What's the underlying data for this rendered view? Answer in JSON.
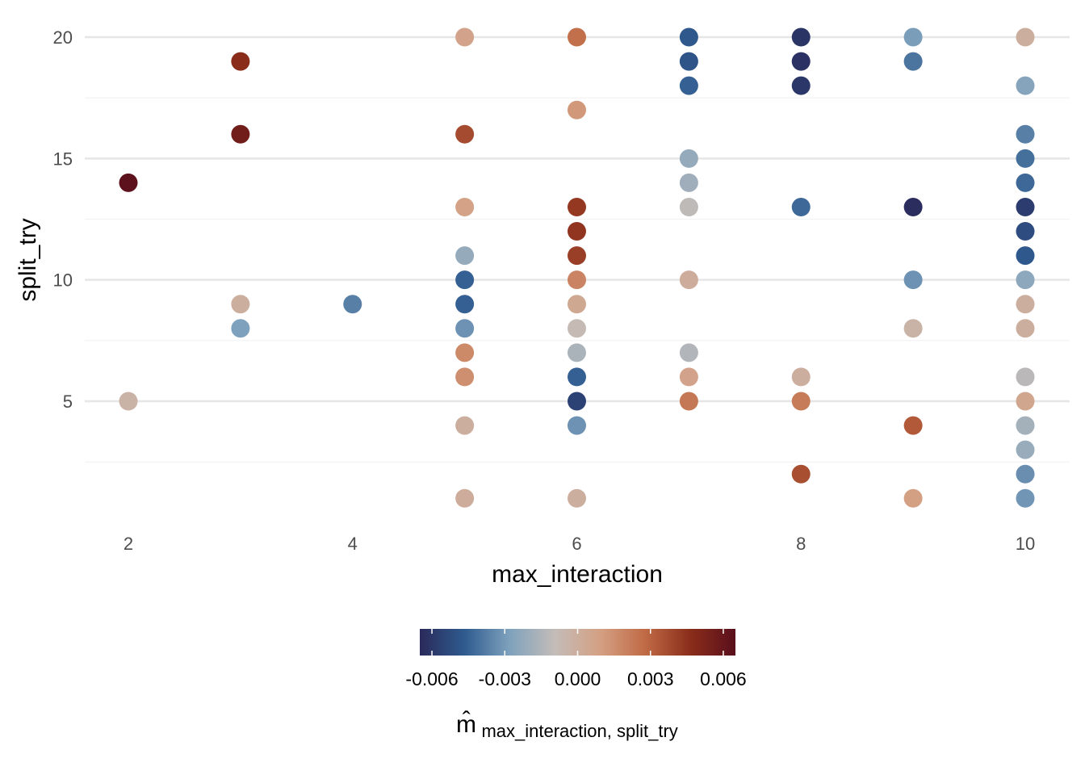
{
  "chart_data": {
    "type": "scatter",
    "title": "",
    "xlabel": "max_interaction",
    "ylabel": "split_try",
    "xlim": [
      1.8,
      10.2
    ],
    "ylim": [
      0.0,
      20.5
    ],
    "x_ticks": [
      2,
      4,
      6,
      8,
      10
    ],
    "y_ticks": [
      5,
      10,
      15,
      20
    ],
    "grid": true,
    "color_scale": {
      "title_main": "m̂",
      "title_sub": "max_interaction, split_try",
      "range": [
        -0.0065,
        0.0065
      ],
      "ticks": [
        -0.006,
        -0.003,
        0.0,
        0.003,
        0.006
      ],
      "tick_labels": [
        "-0.006",
        "-0.003",
        "0.000",
        "0.003",
        "0.006"
      ],
      "stops": [
        "#2a2a5a",
        "#2f5b8f",
        "#7fa2bd",
        "#c4bcb8",
        "#d4a083",
        "#c06a45",
        "#8a2d1a",
        "#5a0f1c"
      ],
      "legend_placement": "bottom"
    },
    "points": [
      {
        "x": 2,
        "y": 14,
        "v": 0.0064
      },
      {
        "x": 2,
        "y": 5,
        "v": -0.0003
      },
      {
        "x": 3,
        "y": 19,
        "v": 0.0047
      },
      {
        "x": 3,
        "y": 16,
        "v": 0.0056
      },
      {
        "x": 3,
        "y": 9,
        "v": 0.0
      },
      {
        "x": 3,
        "y": 8,
        "v": -0.0028
      },
      {
        "x": 4,
        "y": 9,
        "v": -0.0037
      },
      {
        "x": 5,
        "y": 20,
        "v": 0.0007
      },
      {
        "x": 5,
        "y": 16,
        "v": 0.0037
      },
      {
        "x": 5,
        "y": 13,
        "v": 0.0008
      },
      {
        "x": 5,
        "y": 11,
        "v": -0.0022
      },
      {
        "x": 5,
        "y": 10,
        "v": -0.0045
      },
      {
        "x": 5,
        "y": 9,
        "v": -0.0045
      },
      {
        "x": 5,
        "y": 8,
        "v": -0.0032
      },
      {
        "x": 5,
        "y": 7,
        "v": 0.0017
      },
      {
        "x": 5,
        "y": 6,
        "v": 0.0015
      },
      {
        "x": 5,
        "y": 4,
        "v": 0.0
      },
      {
        "x": 5,
        "y": 1,
        "v": 0.0001
      },
      {
        "x": 6,
        "y": 20,
        "v": 0.0026
      },
      {
        "x": 6,
        "y": 17,
        "v": 0.0012
      },
      {
        "x": 6,
        "y": 13,
        "v": 0.0043
      },
      {
        "x": 6,
        "y": 12,
        "v": 0.0044
      },
      {
        "x": 6,
        "y": 11,
        "v": 0.0041
      },
      {
        "x": 6,
        "y": 10,
        "v": 0.0019
      },
      {
        "x": 6,
        "y": 9,
        "v": 0.0004
      },
      {
        "x": 6,
        "y": 8,
        "v": -0.0008
      },
      {
        "x": 6,
        "y": 7,
        "v": -0.0016
      },
      {
        "x": 6,
        "y": 6,
        "v": -0.0045
      },
      {
        "x": 6,
        "y": 5,
        "v": -0.0056
      },
      {
        "x": 6,
        "y": 4,
        "v": -0.0032
      },
      {
        "x": 6,
        "y": 1,
        "v": 0.0
      },
      {
        "x": 7,
        "y": 20,
        "v": -0.0047
      },
      {
        "x": 7,
        "y": 19,
        "v": -0.0049
      },
      {
        "x": 7,
        "y": 18,
        "v": -0.0045
      },
      {
        "x": 7,
        "y": 15,
        "v": -0.0022
      },
      {
        "x": 7,
        "y": 14,
        "v": -0.0019
      },
      {
        "x": 7,
        "y": 13,
        "v": -0.0011
      },
      {
        "x": 7,
        "y": 10,
        "v": 0.0001
      },
      {
        "x": 7,
        "y": 7,
        "v": -0.0014
      },
      {
        "x": 7,
        "y": 6,
        "v": 0.0007
      },
      {
        "x": 7,
        "y": 5,
        "v": 0.0023
      },
      {
        "x": 8,
        "y": 20,
        "v": -0.0061
      },
      {
        "x": 8,
        "y": 19,
        "v": -0.0062
      },
      {
        "x": 8,
        "y": 18,
        "v": -0.006
      },
      {
        "x": 8,
        "y": 13,
        "v": -0.0043
      },
      {
        "x": 8,
        "y": 6,
        "v": 0.0
      },
      {
        "x": 8,
        "y": 5,
        "v": 0.0022
      },
      {
        "x": 8,
        "y": 2,
        "v": 0.0036
      },
      {
        "x": 9,
        "y": 20,
        "v": -0.0029
      },
      {
        "x": 9,
        "y": 19,
        "v": -0.004
      },
      {
        "x": 9,
        "y": 13,
        "v": -0.0064
      },
      {
        "x": 9,
        "y": 10,
        "v": -0.0032
      },
      {
        "x": 9,
        "y": 8,
        "v": -0.0003
      },
      {
        "x": 9,
        "y": 4,
        "v": 0.0033
      },
      {
        "x": 9,
        "y": 1,
        "v": 0.0009
      },
      {
        "x": 10,
        "y": 20,
        "v": 0.0
      },
      {
        "x": 10,
        "y": 18,
        "v": -0.0026
      },
      {
        "x": 10,
        "y": 16,
        "v": -0.0037
      },
      {
        "x": 10,
        "y": 15,
        "v": -0.0041
      },
      {
        "x": 10,
        "y": 14,
        "v": -0.0043
      },
      {
        "x": 10,
        "y": 13,
        "v": -0.0058
      },
      {
        "x": 10,
        "y": 12,
        "v": -0.0052
      },
      {
        "x": 10,
        "y": 11,
        "v": -0.0047
      },
      {
        "x": 10,
        "y": 10,
        "v": -0.0024
      },
      {
        "x": 10,
        "y": 9,
        "v": 0.0
      },
      {
        "x": 10,
        "y": 8,
        "v": 0.0
      },
      {
        "x": 10,
        "y": 6,
        "v": -0.0012
      },
      {
        "x": 10,
        "y": 5,
        "v": 0.0005
      },
      {
        "x": 10,
        "y": 4,
        "v": -0.0018
      },
      {
        "x": 10,
        "y": 3,
        "v": -0.0021
      },
      {
        "x": 10,
        "y": 2,
        "v": -0.0033
      },
      {
        "x": 10,
        "y": 1,
        "v": -0.0031
      }
    ]
  }
}
